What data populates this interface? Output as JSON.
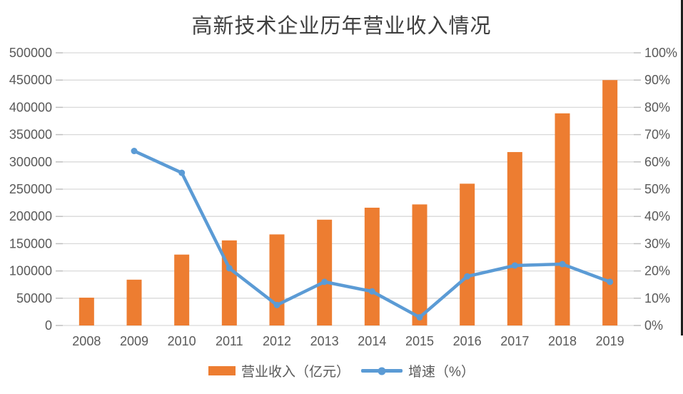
{
  "title": "高新技术企业历年营业收入情况",
  "legend": {
    "revenue": "营业收入（亿元）",
    "growth": "增速（%）"
  },
  "colors": {
    "bar": "#ED7D31",
    "line": "#5B9BD5",
    "grid": "#D9D9D9",
    "tick": "#BFBFBF",
    "axis_text": "#595959",
    "title_text": "#3F3F3F",
    "border": "#1F1F1F"
  },
  "chart_data": {
    "type": "bar",
    "subtype": "bar+line combo, dual axis",
    "title": "高新技术企业历年营业收入情况",
    "categories": [
      "2008",
      "2009",
      "2010",
      "2011",
      "2012",
      "2013",
      "2014",
      "2015",
      "2016",
      "2017",
      "2018",
      "2019"
    ],
    "series": [
      {
        "name": "营业收入（亿元）",
        "type": "bar",
        "axis": "left",
        "color": "#ED7D31",
        "values": [
          51000,
          84000,
          130000,
          156000,
          167000,
          194000,
          216000,
          222000,
          260000,
          318000,
          389000,
          450000
        ]
      },
      {
        "name": "增速（%）",
        "type": "line",
        "axis": "right",
        "color": "#5B9BD5",
        "values": [
          null,
          64,
          56,
          21,
          7.5,
          16,
          12.5,
          3,
          18,
          22,
          22.5,
          16
        ]
      }
    ],
    "left_axis": {
      "min": 0,
      "max": 500000,
      "step": 50000,
      "tick_labels": [
        "0",
        "50000",
        "100000",
        "150000",
        "200000",
        "250000",
        "300000",
        "350000",
        "400000",
        "450000",
        "500000"
      ]
    },
    "right_axis": {
      "min": 0,
      "max": 100,
      "step": 10,
      "tick_labels": [
        "0%",
        "10%",
        "20%",
        "30%",
        "40%",
        "50%",
        "60%",
        "70%",
        "80%",
        "90%",
        "100%"
      ]
    },
    "grid": "horizontal gridlines only",
    "legend_position": "bottom"
  }
}
